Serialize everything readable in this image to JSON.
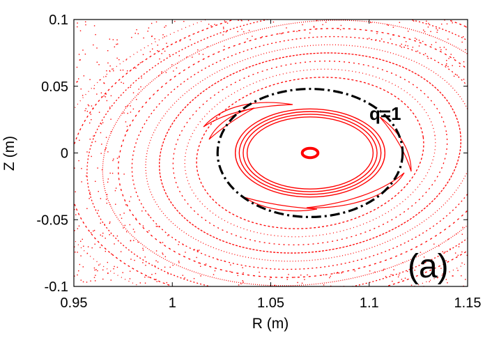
{
  "chart_data": {
    "type": "scatter",
    "title": "",
    "xlabel": "R (m)",
    "ylabel": "Z (m)",
    "xlim": [
      0.95,
      1.15
    ],
    "ylim": [
      -0.1,
      0.1
    ],
    "xticks": [
      0.95,
      1.0,
      1.05,
      1.1,
      1.15
    ],
    "xtick_labels": [
      "0.95",
      "1",
      "1.05",
      "1.1",
      "1.15"
    ],
    "yticks": [
      -0.1,
      -0.05,
      0,
      0.05,
      0.1
    ],
    "ytick_labels": [
      "-0.1",
      "-0.05",
      "0",
      "0.05",
      "0.1"
    ],
    "grid": false,
    "series": [
      {
        "marker_color": "#ff0000",
        "magnetic_axis": {
          "R": 1.07,
          "Z": 0.0
        },
        "flux_surfaces": [
          {
            "semi_axis_R": 0.004,
            "semi_axis_Z": 0.0035,
            "style": "solid"
          },
          {
            "semi_axis_R": 0.032,
            "semi_axis_Z": 0.027,
            "style": "solid"
          },
          {
            "semi_axis_R": 0.034,
            "semi_axis_Z": 0.029,
            "style": "solid"
          },
          {
            "semi_axis_R": 0.036,
            "semi_axis_Z": 0.031,
            "style": "solid"
          },
          {
            "semi_axis_R": 0.038,
            "semi_axis_Z": 0.033,
            "style": "solid"
          },
          {
            "semi_axis_R": 0.058,
            "semi_axis_Z": 0.056,
            "style": "dotted"
          },
          {
            "semi_axis_R": 0.064,
            "semi_axis_Z": 0.062,
            "style": "dotted"
          },
          {
            "semi_axis_R": 0.07,
            "semi_axis_Z": 0.068,
            "style": "dotted"
          },
          {
            "semi_axis_R": 0.077,
            "semi_axis_Z": 0.074,
            "style": "dotted"
          },
          {
            "semi_axis_R": 0.084,
            "semi_axis_Z": 0.08,
            "style": "dotted"
          },
          {
            "semi_axis_R": 0.091,
            "semi_axis_Z": 0.086,
            "style": "dotted"
          },
          {
            "semi_axis_R": 0.098,
            "semi_axis_Z": 0.092,
            "style": "dotted"
          },
          {
            "semi_axis_R": 0.106,
            "semi_axis_Z": 0.098,
            "style": "dotted"
          },
          {
            "semi_axis_R": 0.114,
            "semi_axis_Z": 0.104,
            "style": "dotted"
          },
          {
            "semi_axis_R": 0.123,
            "semi_axis_Z": 0.11,
            "style": "dotted"
          },
          {
            "semi_axis_R": 0.133,
            "semi_axis_Z": 0.116,
            "style": "dotted"
          }
        ]
      },
      {
        "name": "q=1",
        "color": "#000000",
        "style": "dash-dot",
        "center": {
          "R": 1.07,
          "Z": 0.0
        },
        "semi_axis_R": 0.047,
        "semi_axis_Z": 0.048
      }
    ],
    "annotations": [
      {
        "text": "q=1",
        "R": 1.112,
        "Z": 0.026
      },
      {
        "text": "(a)",
        "R": 1.13,
        "Z": -0.085
      }
    ]
  }
}
